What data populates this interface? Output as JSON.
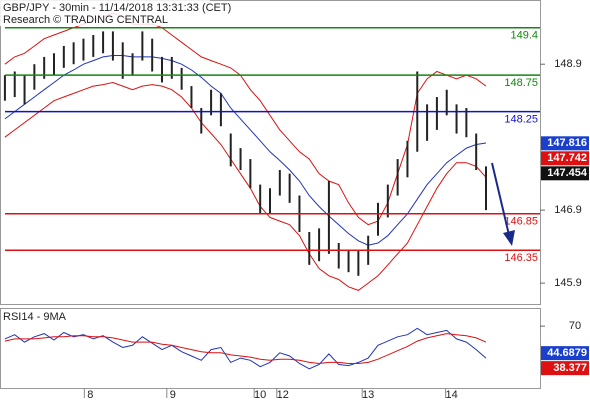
{
  "chart_data": [
    {
      "type": "ohlc",
      "title": "GBP/JPY - 30min - 11/14/2018 13:31:33 (CET)",
      "subtitle": "Research © TRADING CENTRAL",
      "x": [
        0,
        1,
        2,
        3,
        4,
        5,
        6,
        7,
        8,
        9,
        10,
        11,
        12,
        13,
        14,
        15,
        16,
        17,
        18,
        19,
        20,
        21,
        22,
        23,
        24,
        25,
        26,
        27,
        28,
        29,
        30,
        31,
        32,
        33,
        34,
        35,
        36,
        37,
        38,
        39,
        40,
        41,
        42,
        43,
        44,
        45,
        46,
        47,
        48,
        49
      ],
      "low": [
        148.4,
        148.45,
        148.35,
        148.55,
        148.7,
        148.75,
        148.85,
        148.9,
        148.95,
        149.0,
        149.05,
        148.95,
        148.7,
        148.75,
        148.95,
        148.8,
        148.65,
        148.7,
        148.55,
        148.3,
        147.95,
        148.2,
        148.05,
        147.5,
        147.45,
        147.2,
        146.85,
        146.85,
        147.1,
        147.0,
        146.6,
        146.15,
        146.2,
        146.3,
        146.1,
        146.05,
        146.0,
        146.15,
        146.55,
        146.8,
        147.1,
        147.35,
        147.7,
        147.85,
        148.0,
        148.2,
        147.95,
        147.9,
        147.45,
        146.9
      ],
      "high": [
        148.75,
        148.8,
        148.75,
        148.9,
        149.0,
        149.05,
        149.15,
        149.2,
        149.25,
        149.3,
        149.35,
        149.35,
        149.2,
        149.05,
        149.35,
        149.25,
        149.0,
        149.0,
        148.85,
        148.6,
        148.3,
        148.55,
        148.5,
        147.95,
        147.75,
        147.6,
        147.25,
        147.2,
        147.45,
        147.4,
        147.1,
        146.6,
        146.65,
        147.3,
        146.45,
        146.35,
        146.35,
        146.55,
        147.0,
        147.25,
        147.6,
        147.85,
        148.8,
        148.35,
        148.45,
        148.55,
        148.35,
        148.3,
        147.95,
        147.5
      ],
      "bar_color": "#222222",
      "lines": [
        {
          "color": "#2233bb",
          "values": [
            148.15,
            148.25,
            148.35,
            148.45,
            148.55,
            148.65,
            148.75,
            148.82,
            148.9,
            148.95,
            149.0,
            149.02,
            149.02,
            149.0,
            149.0,
            149.0,
            148.98,
            148.95,
            148.9,
            148.82,
            148.72,
            148.6,
            148.5,
            148.3,
            148.15,
            148.0,
            147.85,
            147.7,
            147.58,
            147.45,
            147.3,
            147.1,
            146.95,
            146.82,
            146.7,
            146.58,
            146.48,
            146.42,
            146.45,
            146.55,
            146.7,
            146.85,
            147.05,
            147.25,
            147.4,
            147.55,
            147.65,
            147.75,
            147.8,
            147.82
          ]
        },
        {
          "color": "#dd1111",
          "values": [
            148.9,
            149.0,
            149.05,
            149.15,
            149.25,
            149.3,
            149.35,
            149.4,
            149.45,
            149.5,
            149.55,
            149.6,
            149.55,
            149.45,
            149.45,
            149.45,
            149.4,
            149.3,
            149.2,
            149.1,
            149.0,
            148.95,
            148.9,
            148.85,
            148.75,
            148.55,
            148.4,
            148.2,
            148.0,
            147.85,
            147.7,
            147.6,
            147.4,
            147.3,
            147.25,
            147.0,
            146.8,
            146.7,
            146.75,
            147.0,
            147.4,
            147.8,
            148.5,
            148.7,
            148.8,
            148.75,
            148.7,
            148.75,
            148.7,
            148.6
          ]
        },
        {
          "color": "#dd1111",
          "values": [
            147.9,
            148.0,
            148.1,
            148.2,
            148.3,
            148.4,
            148.45,
            148.5,
            148.55,
            148.6,
            148.62,
            148.65,
            148.6,
            148.55,
            148.6,
            148.62,
            148.6,
            148.55,
            148.45,
            148.3,
            148.1,
            147.95,
            147.8,
            147.6,
            147.4,
            147.2,
            146.95,
            146.8,
            146.75,
            146.7,
            146.55,
            146.3,
            146.1,
            146.0,
            145.95,
            145.85,
            145.8,
            145.9,
            146.0,
            146.15,
            146.3,
            146.45,
            146.7,
            146.95,
            147.2,
            147.4,
            147.55,
            147.55,
            147.5,
            147.35
          ]
        }
      ],
      "levels": [
        {
          "value": 149.4,
          "color": "#118811"
        },
        {
          "value": 148.75,
          "color": "#118811"
        },
        {
          "value": 148.25,
          "color": "#1111cc"
        },
        {
          "value": 146.85,
          "color": "#dd1111"
        },
        {
          "value": 146.35,
          "color": "#dd1111"
        }
      ],
      "markers": [
        {
          "value": 147.816,
          "color": "#1a3fcc"
        },
        {
          "value": 147.742,
          "color": "#dd1111"
        },
        {
          "value": 147.454,
          "color": "#111111"
        }
      ],
      "xlim": [
        -0.5,
        54.5
      ],
      "ylim": [
        145.6,
        149.78
      ],
      "yticks": [
        148.9,
        146.9,
        145.9
      ],
      "xticks": [
        {
          "value": 8.7,
          "label": "8"
        },
        {
          "value": 17.1,
          "label": "9"
        },
        {
          "value": 26,
          "label": "10"
        },
        {
          "value": 28.3,
          "label": "12"
        },
        {
          "value": 37,
          "label": "13"
        },
        {
          "value": 45.5,
          "label": "14"
        }
      ]
    },
    {
      "type": "line",
      "title": "RSI14 - 9MA",
      "series": [
        {
          "color": "#2233bb",
          "values": [
            58,
            62,
            55,
            60,
            63,
            57,
            64,
            60,
            62,
            58,
            61,
            55,
            50,
            52,
            60,
            54,
            48,
            52,
            46,
            42,
            38,
            48,
            50,
            36,
            40,
            38,
            32,
            36,
            45,
            42,
            35,
            30,
            34,
            44,
            34,
            33,
            36,
            40,
            52,
            56,
            60,
            62,
            68,
            62,
            64,
            66,
            58,
            55,
            48,
            40
          ]
        },
        {
          "color": "#dd1111",
          "values": [
            56,
            58,
            58,
            58,
            59,
            60,
            60,
            61,
            61,
            60,
            60,
            59,
            57,
            55,
            55,
            55,
            53,
            52,
            50,
            48,
            46,
            45,
            45,
            43,
            42,
            41,
            39,
            38,
            39,
            39,
            38,
            36,
            35,
            36,
            36,
            35,
            35,
            36,
            39,
            43,
            47,
            51,
            56,
            59,
            61,
            63,
            62,
            61,
            59,
            55
          ]
        }
      ],
      "markers": [
        {
          "value": 44.6879,
          "color": "#1a3fcc"
        },
        {
          "value": 38.377,
          "color": "#dd1111"
        }
      ],
      "ylim": [
        12,
        87
      ],
      "yticks": [
        70
      ]
    }
  ]
}
